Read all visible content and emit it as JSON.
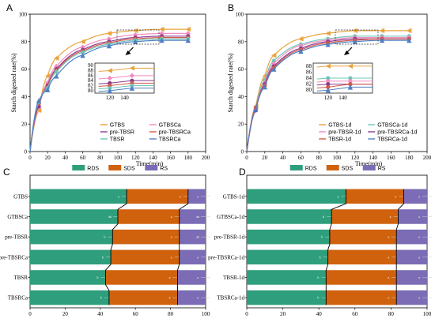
{
  "chart_data": [
    {
      "panel": "A",
      "type": "line",
      "xlabel": "Time(min)",
      "ylabel": "Starch digested rate(%)",
      "xlim": [
        0,
        200
      ],
      "ylim": [
        0,
        100
      ],
      "xticks": [
        0,
        20,
        40,
        60,
        80,
        100,
        120,
        140,
        160,
        180,
        200
      ],
      "yticks": [
        0,
        20,
        40,
        60,
        80,
        100
      ],
      "x": [
        10,
        20,
        30,
        60,
        90,
        120,
        150,
        180
      ],
      "legend_position": "bottom-right",
      "series": [
        {
          "name": "GTBS",
          "color": "#E8A33C",
          "marker": "triangle-left",
          "values": [
            30,
            55,
            68,
            80,
            86,
            88,
            89,
            89
          ]
        },
        {
          "name": "GTBSCa",
          "color": "#F08CC0",
          "marker": "diamond",
          "values": [
            32,
            50,
            62,
            76,
            82,
            85,
            86,
            86
          ]
        },
        {
          "name": "pre-TBSR",
          "color": "#8B3A8F",
          "marker": "circle",
          "values": [
            33,
            48,
            60,
            74,
            80,
            83,
            84,
            84
          ]
        },
        {
          "name": "pre-TBSRCa",
          "color": "#D45A4A",
          "marker": "circle",
          "values": [
            35,
            47,
            59,
            73,
            79,
            82,
            83,
            83
          ]
        },
        {
          "name": "TBSR",
          "color": "#6FC6BA",
          "marker": "circle",
          "values": [
            36,
            46,
            58,
            72,
            78,
            81,
            82,
            82
          ]
        },
        {
          "name": "TBSRCa",
          "color": "#4E7FC4",
          "marker": "triangle-up",
          "values": [
            37,
            45,
            55,
            70,
            77,
            80,
            81,
            81
          ]
        }
      ],
      "inset": {
        "xticks": [
          120,
          140
        ],
        "yticks": [
          80,
          82,
          84,
          86,
          88,
          90
        ],
        "xlim": [
          100,
          180
        ],
        "ylim": [
          79,
          91
        ]
      }
    },
    {
      "panel": "B",
      "type": "line",
      "xlabel": "Time(min)",
      "ylabel": "Starch digested rate(%)",
      "xlim": [
        0,
        200
      ],
      "ylim": [
        0,
        100
      ],
      "xticks": [
        0,
        20,
        40,
        60,
        80,
        100,
        120,
        140,
        160,
        180,
        200
      ],
      "yticks": [
        0,
        20,
        40,
        60,
        80,
        100
      ],
      "x": [
        10,
        20,
        30,
        60,
        90,
        120,
        150,
        180
      ],
      "legend_position": "bottom-right",
      "series": [
        {
          "name": "GTBS-1d",
          "color": "#E8A33C",
          "marker": "triangle-left",
          "values": [
            33,
            55,
            70,
            82,
            86,
            88,
            88,
            88
          ]
        },
        {
          "name": "GTBSCa-1d",
          "color": "#6FC6BA",
          "marker": "circle",
          "values": [
            32,
            52,
            66,
            78,
            82,
            84,
            84,
            84
          ]
        },
        {
          "name": "pre-TBSR-1d",
          "color": "#F08CC0",
          "marker": "diamond",
          "values": [
            31,
            50,
            64,
            77,
            81,
            83,
            83,
            83
          ]
        },
        {
          "name": "pre-TBSRCa-1d",
          "color": "#8B3A8F",
          "marker": "circle",
          "values": [
            30,
            49,
            62,
            75,
            80,
            82,
            82,
            82
          ]
        },
        {
          "name": "TBSR-1d",
          "color": "#D45A4A",
          "marker": "circle",
          "values": [
            32,
            48,
            61,
            74,
            79,
            81,
            82,
            82
          ]
        },
        {
          "name": "TBSRCa-1d",
          "color": "#4E7FC4",
          "marker": "triangle-up",
          "values": [
            31,
            47,
            60,
            73,
            78,
            80,
            81,
            81
          ]
        }
      ],
      "inset": {
        "xticks": [
          120,
          140
        ],
        "yticks": [
          80,
          82,
          84,
          86,
          88
        ],
        "xlim": [
          100,
          180
        ],
        "ylim": [
          79,
          89
        ]
      }
    },
    {
      "panel": "C",
      "type": "bar",
      "orientation": "horizontal-stacked",
      "xlim": [
        0,
        100
      ],
      "xticks": [
        0,
        20,
        40,
        60,
        80,
        100
      ],
      "legend": [
        "RDS",
        "SDS",
        "RS"
      ],
      "colors": {
        "RDS": "#2E9E7C",
        "SDS": "#D0620E",
        "RS": "#7B6CB5"
      },
      "legend_position": "top-center",
      "categories": [
        "GTBS",
        "GTBSCa",
        "pre-TBSR",
        "pre-TBSRCa",
        "TBSR",
        "TBSRCa"
      ],
      "series": [
        {
          "name": "RDS",
          "values": [
            55,
            50,
            47,
            46,
            43,
            45
          ]
        },
        {
          "name": "SDS",
          "values": [
            35,
            35,
            38,
            39,
            41,
            39
          ]
        },
        {
          "name": "RS",
          "values": [
            10,
            15,
            15,
            15,
            16,
            16
          ]
        }
      ],
      "sig_labels": [
        [
          "a",
          "a",
          "a"
        ],
        [
          "ab",
          "a",
          "ab"
        ],
        [
          "b",
          "a",
          "ab"
        ],
        [
          "b",
          "a",
          "a"
        ],
        [
          "b",
          "a",
          "a"
        ],
        [
          "b",
          "a",
          "a"
        ]
      ]
    },
    {
      "panel": "D",
      "type": "bar",
      "orientation": "horizontal-stacked",
      "xlim": [
        0,
        100
      ],
      "xticks": [
        0,
        20,
        40,
        60,
        80,
        100
      ],
      "legend": [
        "RDS",
        "SDS",
        "RS"
      ],
      "colors": {
        "RDS": "#2E9E7C",
        "SDS": "#D0620E",
        "RS": "#7B6CB5"
      },
      "legend_position": "top-center",
      "categories": [
        "GTBS-1d",
        "GTBSCa-1d",
        "pre-TBSR-1d",
        "pre-TBSRCa-1d",
        "TBSR-1d",
        "TBSRCa-1d"
      ],
      "series": [
        {
          "name": "RDS",
          "values": [
            55,
            47,
            46,
            45,
            44,
            44
          ]
        },
        {
          "name": "SDS",
          "values": [
            32,
            37,
            37,
            38,
            39,
            39
          ]
        },
        {
          "name": "RS",
          "values": [
            13,
            16,
            17,
            17,
            17,
            17
          ]
        }
      ],
      "sig_labels": [
        [
          "a",
          "a",
          "a"
        ],
        [
          "b",
          "a",
          "a"
        ],
        [
          "b",
          "a",
          "a"
        ],
        [
          "b",
          "a",
          "a"
        ],
        [
          "b",
          "a",
          "a"
        ],
        [
          "b",
          "a",
          "a"
        ]
      ]
    }
  ]
}
